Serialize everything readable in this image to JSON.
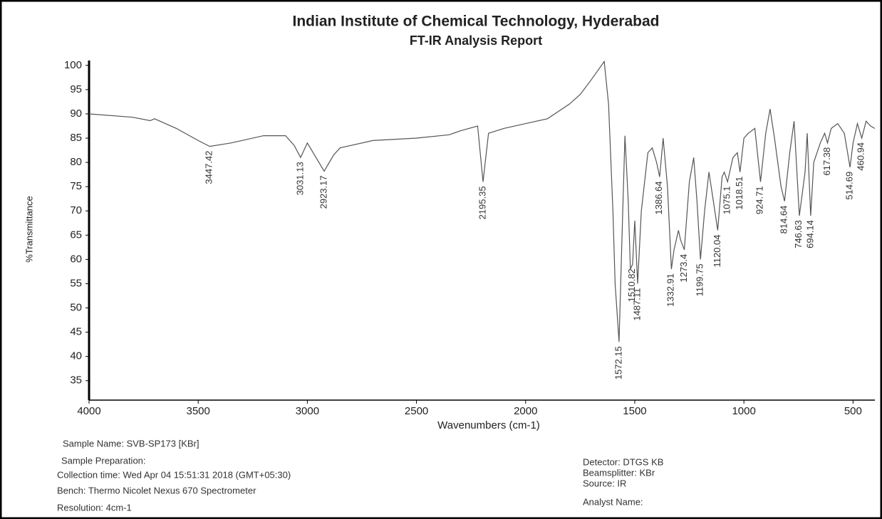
{
  "chart_data": {
    "type": "line",
    "title": "Indian Institute of Chemical Technology, Hyderabad",
    "subtitle": "FT-IR Analysis Report",
    "x_label": "Wavenumbers (cm-1)",
    "y_label": "%Transmittance",
    "xlim": [
      4000,
      400
    ],
    "ylim": [
      31,
      101
    ],
    "xticks": [
      4000,
      3500,
      3000,
      2500,
      2000,
      1500,
      1000,
      500
    ],
    "yticks": [
      35,
      40,
      45,
      50,
      55,
      60,
      65,
      70,
      75,
      80,
      85,
      90,
      95,
      100
    ],
    "grid": false,
    "series": [
      {
        "name": "SVB-SP173",
        "color": "#555555",
        "x": [
          4000,
          3800,
          3720,
          3700,
          3600,
          3500,
          3447,
          3350,
          3200,
          3100,
          3060,
          3031,
          3000,
          2960,
          2923,
          2880,
          2850,
          2700,
          2500,
          2350,
          2300,
          2220,
          2195,
          2170,
          2100,
          2000,
          1900,
          1800,
          1750,
          1700,
          1640,
          1620,
          1600,
          1590,
          1572,
          1555,
          1545,
          1530,
          1520,
          1510,
          1500,
          1487,
          1470,
          1440,
          1420,
          1400,
          1386,
          1370,
          1350,
          1332,
          1320,
          1300,
          1290,
          1273,
          1250,
          1230,
          1215,
          1199,
          1180,
          1160,
          1140,
          1120,
          1100,
          1090,
          1075,
          1050,
          1030,
          1018,
          1000,
          980,
          950,
          924,
          900,
          880,
          860,
          830,
          814,
          790,
          770,
          746,
          720,
          710,
          694,
          680,
          650,
          630,
          617,
          600,
          570,
          540,
          514,
          500,
          480,
          460,
          440,
          420,
          400
        ],
        "values": [
          90,
          89.3,
          88.6,
          89,
          87,
          84.5,
          83.3,
          84,
          85.5,
          85.5,
          83.5,
          81,
          84,
          81,
          78.2,
          81.5,
          83,
          84.5,
          85,
          85.7,
          86.5,
          87.5,
          76,
          86,
          87,
          88,
          89,
          92,
          94,
          97,
          100.8,
          92,
          70,
          55,
          43,
          70,
          85.5,
          72,
          58,
          59,
          68,
          55,
          70,
          82,
          83,
          80,
          77,
          85,
          75,
          58,
          62,
          66,
          64,
          62,
          76,
          81,
          72,
          60,
          70,
          78,
          72,
          66,
          77,
          78,
          76,
          81,
          82,
          78,
          85,
          86,
          87,
          76,
          86,
          91,
          85,
          75,
          72,
          82,
          88.5,
          69,
          78,
          86,
          69,
          80,
          84,
          86,
          84,
          87,
          88,
          86,
          79,
          84,
          88,
          85,
          88.5,
          87.5,
          87
        ]
      }
    ],
    "peaks": [
      {
        "x": 3447.42,
        "y": 83.3
      },
      {
        "x": 3031.13,
        "y": 81
      },
      {
        "x": 2923.17,
        "y": 78.2
      },
      {
        "x": 2195.35,
        "y": 76
      },
      {
        "x": 1572.15,
        "y": 43
      },
      {
        "x": 1510.82,
        "y": 59
      },
      {
        "x": 1487.11,
        "y": 55
      },
      {
        "x": 1386.64,
        "y": 77
      },
      {
        "x": 1332.91,
        "y": 58
      },
      {
        "x": 1273.4,
        "y": 62
      },
      {
        "x": 1199.75,
        "y": 60
      },
      {
        "x": 1120.04,
        "y": 66
      },
      {
        "x": 1075.1,
        "y": 76
      },
      {
        "x": 1018.51,
        "y": 78
      },
      {
        "x": 924.71,
        "y": 76
      },
      {
        "x": 814.64,
        "y": 72
      },
      {
        "x": 746.63,
        "y": 69
      },
      {
        "x": 694.14,
        "y": 69
      },
      {
        "x": 617.38,
        "y": 84
      },
      {
        "x": 514.69,
        "y": 79
      },
      {
        "x": 460.94,
        "y": 85
      }
    ]
  },
  "report": {
    "sample_name": "Sample Name:  SVB-SP173 [KBr]",
    "sample_preparation": "Sample Preparation:",
    "collection_time": "Collection time: Wed Apr 04 15:51:31 2018 (GMT+05:30)",
    "bench": "Bench: Thermo Nicolet Nexus 670 Spectrometer",
    "resolution": "Resolution: 4cm-1",
    "detector": "Detector:  DTGS KB",
    "beamsplitter": "Beamsplitter:  KBr",
    "source": "Source:  IR",
    "analyst": "Analyst Name:"
  }
}
